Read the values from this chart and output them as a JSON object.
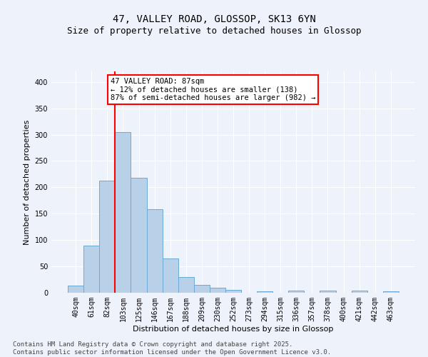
{
  "title_line1": "47, VALLEY ROAD, GLOSSOP, SK13 6YN",
  "title_line2": "Size of property relative to detached houses in Glossop",
  "xlabel": "Distribution of detached houses by size in Glossop",
  "ylabel": "Number of detached properties",
  "categories": [
    "40sqm",
    "61sqm",
    "82sqm",
    "103sqm",
    "125sqm",
    "146sqm",
    "167sqm",
    "188sqm",
    "209sqm",
    "230sqm",
    "252sqm",
    "273sqm",
    "294sqm",
    "315sqm",
    "336sqm",
    "357sqm",
    "378sqm",
    "400sqm",
    "421sqm",
    "442sqm",
    "463sqm"
  ],
  "values": [
    13,
    90,
    213,
    305,
    218,
    158,
    65,
    30,
    15,
    9,
    6,
    0,
    3,
    0,
    4,
    0,
    4,
    0,
    4,
    0,
    3
  ],
  "bar_color": "#b8d0e8",
  "bar_edge_color": "#6aaad4",
  "red_line_x": 2.5,
  "annotation_text": "47 VALLEY ROAD: 87sqm\n← 12% of detached houses are smaller (138)\n87% of semi-detached houses are larger (982) →",
  "annotation_box_color": "white",
  "annotation_box_edge": "red",
  "ylim": [
    0,
    420
  ],
  "yticks": [
    0,
    50,
    100,
    150,
    200,
    250,
    300,
    350,
    400
  ],
  "footer_text": "Contains HM Land Registry data © Crown copyright and database right 2025.\nContains public sector information licensed under the Open Government Licence v3.0.",
  "background_color": "#eef2fb",
  "grid_color": "white",
  "title_fontsize": 10,
  "subtitle_fontsize": 9,
  "axis_label_fontsize": 8,
  "tick_fontsize": 7,
  "annotation_fontsize": 7.5,
  "footer_fontsize": 6.5
}
